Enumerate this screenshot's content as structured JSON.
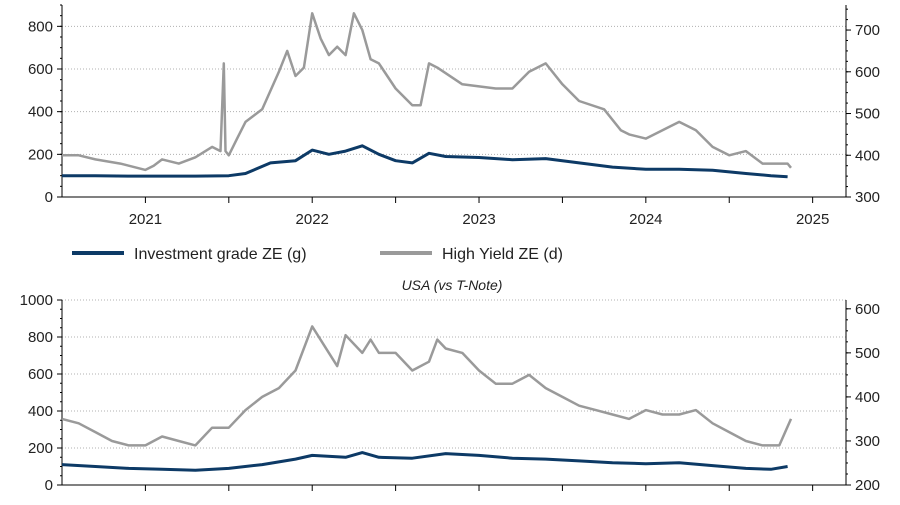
{
  "colors": {
    "investment_grade": "#0d3a66",
    "high_yield": "#9a9a9a",
    "axis": "#000000",
    "grid": "#b0b0b0"
  },
  "legend": {
    "ig_label": "Investment grade ZE (g)",
    "hy_label": "High Yield ZE (d)"
  },
  "chart_data": [
    {
      "type": "line",
      "title": "",
      "x_range": [
        2020.5,
        2025.2
      ],
      "x_ticks": [
        "2021",
        "2022",
        "2023",
        "2024",
        "2025"
      ],
      "x_tick_values": [
        2021.0,
        2022.0,
        2023.0,
        2024.0,
        2025.0
      ],
      "ylim_left": [
        0,
        900
      ],
      "yticks_left": [
        0,
        200,
        400,
        600,
        800
      ],
      "ylim_right": [
        300,
        760
      ],
      "yticks_right": [
        300,
        400,
        500,
        600,
        700
      ],
      "grid": true,
      "legend_position": "bottom",
      "series": [
        {
          "name": "Investment grade ZE (g)",
          "axis": "left",
          "x": [
            2020.5,
            2020.7,
            2020.9,
            2021.1,
            2021.3,
            2021.5,
            2021.6,
            2021.75,
            2021.9,
            2022.0,
            2022.1,
            2022.2,
            2022.3,
            2022.4,
            2022.5,
            2022.6,
            2022.7,
            2022.8,
            2023.0,
            2023.2,
            2023.4,
            2023.6,
            2023.8,
            2024.0,
            2024.2,
            2024.4,
            2024.6,
            2024.75,
            2024.85
          ],
          "y": [
            100,
            100,
            98,
            98,
            98,
            100,
            110,
            160,
            170,
            220,
            200,
            215,
            240,
            200,
            170,
            160,
            205,
            190,
            185,
            175,
            180,
            160,
            140,
            130,
            130,
            125,
            110,
            100,
            95
          ]
        },
        {
          "name": "High Yield ZE (d)",
          "axis": "right",
          "x": [
            2020.5,
            2020.6,
            2020.7,
            2020.85,
            2021.0,
            2021.05,
            2021.1,
            2021.2,
            2021.3,
            2021.4,
            2021.45,
            2021.47,
            2021.48,
            2021.5,
            2021.55,
            2021.6,
            2021.7,
            2021.8,
            2021.85,
            2021.9,
            2021.95,
            2022.0,
            2022.05,
            2022.1,
            2022.15,
            2022.2,
            2022.25,
            2022.3,
            2022.35,
            2022.4,
            2022.5,
            2022.6,
            2022.65,
            2022.7,
            2022.75,
            2022.9,
            2023.1,
            2023.2,
            2023.3,
            2023.4,
            2023.5,
            2023.6,
            2023.75,
            2023.85,
            2023.9,
            2024.0,
            2024.1,
            2024.2,
            2024.3,
            2024.4,
            2024.5,
            2024.6,
            2024.7,
            2024.8,
            2024.85,
            2024.87
          ],
          "y": [
            400,
            400,
            390,
            380,
            365,
            375,
            390,
            380,
            395,
            420,
            410,
            620,
            410,
            400,
            440,
            480,
            510,
            600,
            650,
            590,
            610,
            740,
            680,
            640,
            660,
            640,
            740,
            700,
            630,
            620,
            560,
            520,
            520,
            620,
            610,
            570,
            560,
            560,
            600,
            620,
            570,
            530,
            510,
            460,
            450,
            440,
            460,
            480,
            460,
            420,
            400,
            410,
            380,
            380,
            380,
            370
          ]
        }
      ]
    },
    {
      "type": "line",
      "title": "USA (vs T-Note)",
      "x_range": [
        2020.5,
        2025.2
      ],
      "x_ticks": [],
      "ylim_left": [
        0,
        1000
      ],
      "yticks_left": [
        0,
        200,
        400,
        600,
        800,
        1000
      ],
      "ylim_right": [
        200,
        620
      ],
      "yticks_right": [
        200,
        300,
        400,
        500,
        600
      ],
      "grid": true,
      "series": [
        {
          "name": "Investment grade",
          "axis": "left",
          "x": [
            2020.5,
            2020.7,
            2020.9,
            2021.1,
            2021.3,
            2021.5,
            2021.7,
            2021.9,
            2022.0,
            2022.2,
            2022.3,
            2022.4,
            2022.6,
            2022.8,
            2023.0,
            2023.2,
            2023.4,
            2023.6,
            2023.8,
            2024.0,
            2024.2,
            2024.4,
            2024.6,
            2024.75,
            2024.85
          ],
          "y": [
            110,
            100,
            90,
            85,
            80,
            90,
            110,
            140,
            160,
            150,
            175,
            150,
            145,
            170,
            160,
            145,
            140,
            130,
            120,
            115,
            120,
            105,
            90,
            85,
            100
          ]
        },
        {
          "name": "High Yield",
          "axis": "right",
          "x": [
            2020.5,
            2020.6,
            2020.7,
            2020.8,
            2020.9,
            2021.0,
            2021.1,
            2021.2,
            2021.3,
            2021.4,
            2021.5,
            2021.6,
            2021.7,
            2021.8,
            2021.9,
            2022.0,
            2022.1,
            2022.15,
            2022.2,
            2022.3,
            2022.35,
            2022.4,
            2022.5,
            2022.6,
            2022.7,
            2022.75,
            2022.8,
            2022.9,
            2023.0,
            2023.1,
            2023.2,
            2023.3,
            2023.4,
            2023.5,
            2023.6,
            2023.7,
            2023.8,
            2023.9,
            2024.0,
            2024.1,
            2024.2,
            2024.3,
            2024.4,
            2024.5,
            2024.6,
            2024.7,
            2024.8,
            2024.87
          ],
          "y": [
            350,
            340,
            320,
            300,
            290,
            290,
            310,
            300,
            290,
            330,
            330,
            370,
            400,
            420,
            460,
            560,
            500,
            470,
            540,
            500,
            530,
            500,
            500,
            460,
            480,
            530,
            510,
            500,
            460,
            430,
            430,
            450,
            420,
            400,
            380,
            370,
            360,
            350,
            370,
            360,
            360,
            370,
            340,
            320,
            300,
            290,
            290,
            350
          ]
        }
      ]
    }
  ]
}
